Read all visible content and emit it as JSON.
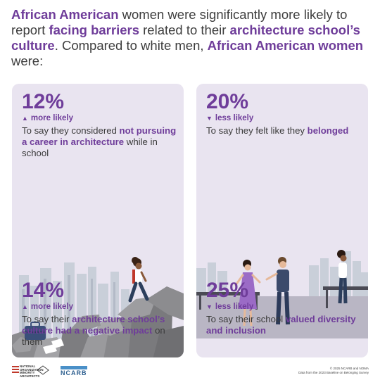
{
  "headline": {
    "p1": "African American",
    "p2": " women were significantly more likely to report ",
    "p3": "facing barriers",
    "p4": " related to their ",
    "p5": "architecture school’s culture",
    "p6": ". Compared to white men, ",
    "p7": "African American women",
    "p8": " were:"
  },
  "colors": {
    "accent": "#6f3d9a",
    "panel_bg": "#e9e4f0",
    "text": "#3a3a3a"
  },
  "chart_data": {
    "type": "table",
    "title": "African American women were significantly more likely to report facing barriers related to their architecture school’s culture. Compared to white men, African American women were:",
    "stats": [
      {
        "value": "12%",
        "direction": "more likely",
        "icon": "up-triangle-icon",
        "desc_pre": "To say they considered ",
        "desc_em": "not pursuing a career in architecture",
        "desc_post": " while in school"
      },
      {
        "value": "20%",
        "direction": "less likely",
        "icon": "down-triangle-icon",
        "desc_pre": "To say they felt like they ",
        "desc_em": "belonged",
        "desc_post": ""
      },
      {
        "value": "14%",
        "direction": "more likely",
        "icon": "up-triangle-icon",
        "desc_pre": "To say their ",
        "desc_em": "architecture school’s culture had a negative impact",
        "desc_post": " on them"
      },
      {
        "value": "25%",
        "direction": "less likely",
        "icon": "down-triangle-icon",
        "desc_pre": "To say their school ",
        "desc_em": "valued diversity and inclusion",
        "desc_post": ""
      }
    ]
  },
  "footer": {
    "noma_line1": "NATIONAL",
    "noma_line2": "ORGANIZATION",
    "noma_line3": "MINORITY",
    "noma_line4": "ARCHITECTS",
    "ncarb": "NCARB",
    "copyright": "© 2025 NCARB and NOMA",
    "source": "Data from the 2023 Baseline on Belonging Survey"
  }
}
